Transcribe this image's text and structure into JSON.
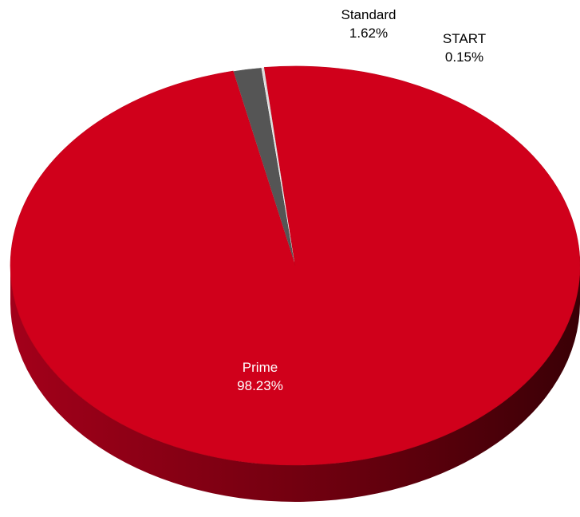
{
  "chart_data": {
    "type": "pie",
    "style": "3d",
    "title": "",
    "slices": [
      {
        "name": "Prime",
        "value": 98.23,
        "label": "98.23%",
        "color": "#d0001b",
        "side_color": "#8c0012",
        "label_color": "#ffffff"
      },
      {
        "name": "Standard",
        "value": 1.62,
        "label": "1.62%",
        "color": "#555555",
        "side_color": "#333333",
        "label_color": "#000000"
      },
      {
        "name": "START",
        "value": 0.15,
        "label": "0.15%",
        "color": "#d9d9d9",
        "side_color": "#a6a6a6",
        "label_color": "#000000"
      }
    ],
    "legend": "none"
  }
}
